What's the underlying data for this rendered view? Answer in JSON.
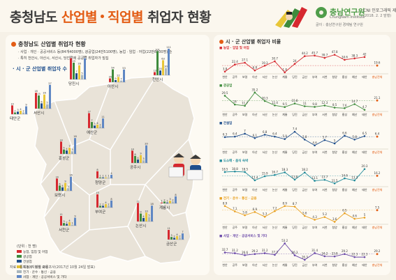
{
  "header": {
    "title_part1": "충청남도",
    "title_part2": "산업별",
    "title_part3": "직업별",
    "title_part4": "취업자 현황",
    "logo_name": "충남연구원",
    "logo_sub": "ChungNam Institute",
    "issue": "CNI 인포그래픽 제40호",
    "date": "(2018. 2. 2 발행)",
    "source_top": "글이 : 충남연구원 경제팀 연구원"
  },
  "colors": {
    "accent": "#e35d15",
    "series": [
      "#d6282f",
      "#3e8b3c",
      "#1f4e8c",
      "#e8c637",
      "#a9b6bd",
      "#5f87c4"
    ],
    "line_colors": [
      "#d6282f",
      "#3e8b3c",
      "#1f4e8c",
      "#1f8a9a",
      "#e8a020",
      "#6a48a8"
    ]
  },
  "left": {
    "section_title": "충청남도 산업별 취업자 현황",
    "notes": [
      "· 사업 · 개인 · 공공서비스 등(84개4000명), 광공업(24만5100명), 농업 · 임업 · 어업(22만8100명) 순",
      "· 특히 천안시, 아산시, 서산시, 당진시에 공공업 취업자가 밀집"
    ],
    "sub_title": "· 시 · 군 산업별 취업자 수",
    "legend_title": "(단위 : 천 명)",
    "legend": [
      "농업, 임업 및 어업",
      "광공업",
      "건설업",
      "도소매 · 음식 숙박",
      "전기 · 운수 · 통신 · 금융",
      "사업 · 개인 · 공공서비스 및 기타"
    ],
    "footer": "자료 : 통계청, 지역별 고용조사(2017년 10월 24일 발표)"
  },
  "right": {
    "section_title": "시 · 군 산업별 취업자 비율",
    "avg_label": "충남전체"
  },
  "chart_data": [
    {
      "type": "bar",
      "title": "시 · 군 산업별 취업자 수",
      "unit": "천 명",
      "series_names": [
        "농업, 임업 및 어업",
        "광공업",
        "건설업",
        "도소매 · 음식 숙박",
        "전기 · 운수 · 통신 · 금융",
        "사업 · 개인 · 공공서비스 및 기타"
      ],
      "regions": [
        {
          "name": "태안군",
          "values": [
            10,
            2,
            3,
            4,
            2,
            9
          ]
        },
        {
          "name": "서산시",
          "values": [
            18,
            15,
            6,
            16,
            5,
            27
          ]
        },
        {
          "name": "당진시",
          "values": [
            24,
            19,
            7,
            16,
            5,
            24
          ]
        },
        {
          "name": "아산시",
          "values": [
            16,
            54,
            9,
            22,
            7,
            53
          ]
        },
        {
          "name": "천안시",
          "values": [
            13,
            101,
            20,
            63,
            30,
            111
          ]
        },
        {
          "name": "예산군",
          "values": [
            17,
            7,
            3,
            4,
            2,
            11
          ]
        },
        {
          "name": "홍성군",
          "values": [
            14,
            5,
            4,
            7,
            3,
            18
          ]
        },
        {
          "name": "청양군",
          "values": [
            8,
            1,
            1,
            1,
            1,
            4
          ]
        },
        {
          "name": "공주시",
          "values": [
            14,
            8,
            4,
            9,
            3,
            20
          ]
        },
        {
          "name": "보령시",
          "values": [
            14,
            6,
            4,
            9,
            3,
            16
          ]
        },
        {
          "name": "부여군",
          "values": [
            15,
            2,
            2,
            4,
            2,
            8
          ]
        },
        {
          "name": "계룡시",
          "values": [
            1,
            2,
            1,
            3,
            2,
            8
          ]
        },
        {
          "name": "서천군",
          "values": [
            11,
            3,
            2,
            4,
            1,
            9
          ]
        },
        {
          "name": "논산시",
          "values": [
            21,
            9,
            4,
            10,
            5,
            18
          ]
        },
        {
          "name": "금산군",
          "values": [
            11,
            3,
            2,
            4,
            2,
            7
          ]
        }
      ]
    },
    {
      "type": "line",
      "title": "시 · 군 산업별 취업자 비율",
      "unit": "%",
      "x": [
        "천안",
        "공주",
        "보령",
        "아산",
        "서산",
        "논산",
        "계룡",
        "당진",
        "금산",
        "부여",
        "서천",
        "청양",
        "홍성",
        "예산",
        "태안"
      ],
      "avg_label": "충남전체",
      "series": [
        {
          "name": "농업 · 임업 및 어업",
          "values": [
            3.8,
            22.4,
            27.1,
            6.8,
            19.3,
            30.7,
            1.8,
            24.0,
            44.2,
            45.7,
            39.7,
            47.8,
            34.6,
            38.3,
            42.0
          ],
          "avg": 19.6
        },
        {
          "name": "광공업",
          "values": [
            29.5,
            14.0,
            11.7,
            35.2,
            20.3,
            12.4,
            9.5,
            15.8,
            11.0,
            9.8,
            12.3,
            8.5,
            7.6,
            14.7,
            4.7
          ],
          "avg": 21.1
        },
        {
          "name": "건설업",
          "values": [
            6.3,
            6.4,
            7.0,
            6.1,
            6.8,
            6.4,
            5.9,
            7.4,
            5.8,
            4.6,
            5.7,
            5.0,
            6.6,
            5.8,
            6.5
          ],
          "avg": 6.4
        },
        {
          "name": "도소매 · 음식 숙박",
          "values": [
            18.5,
            18.8,
            18.5,
            13.4,
            15.9,
            16.7,
            18.3,
            13.8,
            18.2,
            13.1,
            13.7,
            11.5,
            14.6,
            13.3,
            20.3
          ],
          "avg": 16.2
        },
        {
          "name": "전기 · 운수 · 통신 · 금융",
          "values": [
            8.9,
            7.1,
            5.8,
            6.9,
            5.3,
            7.2,
            8.9,
            8.7,
            5.6,
            4.3,
            5.2,
            3.6,
            6.5,
            4.6,
            5.0
          ],
          "avg": 7.5
        },
        {
          "name": "사업 · 개인 · 공공서비스 및 기타",
          "values": [
            32.7,
            31.2,
            26.6,
            29.2,
            31.2,
            27.3,
            53.2,
            26.3,
            16.3,
            31.4,
            24.2,
            23.8,
            29.2,
            22.3,
            22.3
          ],
          "avg": 29.2
        }
      ]
    }
  ]
}
